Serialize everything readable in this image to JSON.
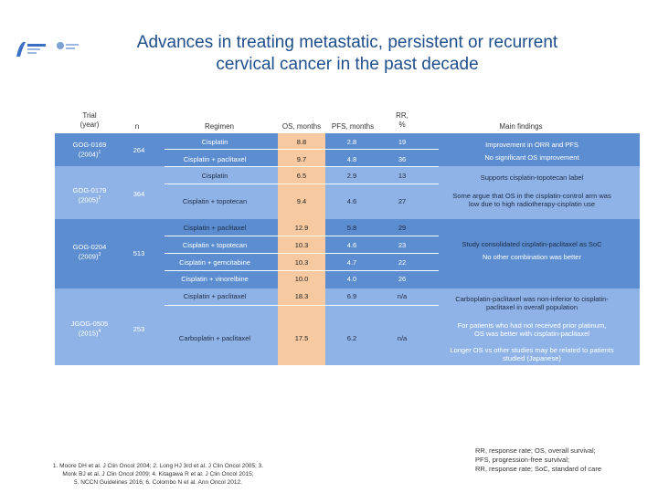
{
  "header": {
    "title_line1": "Advances in treating metastatic, persistent or recurrent",
    "title_line2": "cervical cancer in the past decade",
    "logo_label": "logo"
  },
  "columns": {
    "trial_1": "Trial",
    "trial_2": "(year)",
    "n": "n",
    "regimen": "Regimen",
    "os": "OS, months",
    "pfs": "PFS, months",
    "rr_1": "RR,",
    "rr_2": "%",
    "findings": "Main findings"
  },
  "trials": [
    {
      "name": "GOG-0169",
      "year": "(2004)",
      "ref": "1",
      "n": "264"
    },
    {
      "name": "GOG-0179",
      "year": "(2005)",
      "ref": "2",
      "n": "364"
    },
    {
      "name": "GOG-0204",
      "year": "(2009)",
      "ref": "3",
      "n": "513"
    },
    {
      "name": "JGOG-0505",
      "year": "(2015)",
      "ref": "4",
      "n": "253"
    }
  ],
  "rows": [
    {
      "regimen": "Cisplatin",
      "os": "8.8",
      "pfs": "2.8",
      "rr": "19"
    },
    {
      "regimen": "Cisplatin + paclitaxel",
      "os": "9.7",
      "pfs": "4.8",
      "rr": "36"
    },
    {
      "regimen": "Cisplatin",
      "os": "6.5",
      "pfs": "2.9",
      "rr": "13"
    },
    {
      "regimen": "Cisplatin + topotecan",
      "os": "9.4",
      "pfs": "4.6",
      "rr": "27"
    },
    {
      "regimen": "Cisplatin + paclitaxel",
      "os": "12.9",
      "pfs": "5.8",
      "rr": "29"
    },
    {
      "regimen": "Cisplatin + topotecan",
      "os": "10.3",
      "pfs": "4.6",
      "rr": "23"
    },
    {
      "regimen": "Cisplatin + gemcitabine",
      "os": "10.3",
      "pfs": "4.7",
      "rr": "22"
    },
    {
      "regimen": "Cisplatin + vinorelbine",
      "os": "10.0",
      "pfs": "4.0",
      "rr": "26"
    },
    {
      "regimen": "Cisplatin + paclitaxel",
      "os": "18.3",
      "pfs": "6.9",
      "rr": "n/a"
    },
    {
      "regimen": "Carboplatin + paclitaxel",
      "os": "17.5",
      "pfs": "6.2",
      "rr": "n/a"
    }
  ],
  "findings": {
    "f1": "Improvement in ORR and PFS",
    "f2": "No significant OS improvement",
    "f3": "Supports cisplatin-topotecan label",
    "f4a": "Some argue that OS in the cisplatin-control arm was",
    "f4b": "low due to high radiotherapy-cisplatin use",
    "f5": "Study consolidated cisplatin-paclitaxel as SoC",
    "f6": "No other combination was better",
    "f7a": "Carboplatin-paclitaxel was non-inferior to cisplatin-",
    "f7b": "paclitaxel in overall population",
    "f8a": "For patients who had not received prior platinum,",
    "f8b": "OS was better with cisplatin-paclitaxel",
    "f9a": "Longer OS vs other studies may be related to patients",
    "f9b": "studied (Japanese)"
  },
  "footer": {
    "refs_1": "1. Moore DH et al. J Clin Oncol 2004; 2. Long HJ 3rd et al. J Clin Oncol 2005; 3.",
    "refs_2": "Monk BJ et al. J Clin Oncol 2009; 4. Kitagawa R et al. J Clin Oncol 2015;",
    "refs_3": "5. NCCN Guidelines 2016; 6. Colombo N et al. Ann Oncol 2012.",
    "abbr_1": "RR, response rate; OS, overall survival;",
    "abbr_2": "PFS, progression-free survival;",
    "abbr_3": "RR, response rate; SoC, standard of care"
  },
  "colors": {
    "title": "#1f4e8c",
    "band_dark": "#5b8dd0",
    "band_light": "#8fb3e6",
    "os_column": "#f6c9a0",
    "highlight": "#e2372b"
  }
}
